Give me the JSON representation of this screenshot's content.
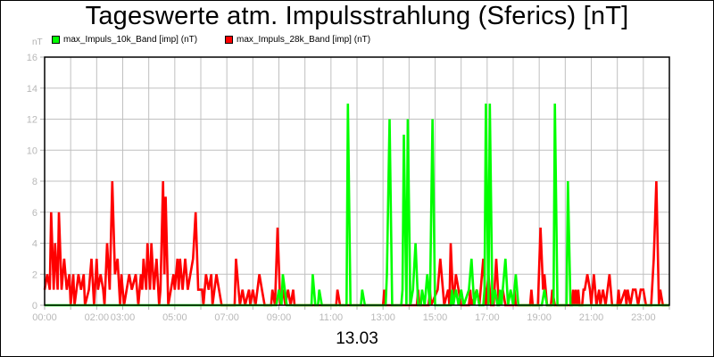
{
  "chart": {
    "title": "Tageswerte atm. Impulsstrahlung (Sferics) [nT]",
    "unit_label": "nT",
    "date_label": "13.03",
    "legend": [
      {
        "label": "max_Impuls_10k_Band [imp] (nT)",
        "color": "#00ff00"
      },
      {
        "label": "max_Impuls_28k_Band [imp] (nT)",
        "color": "#ff0000"
      }
    ]
  },
  "chart_data": {
    "type": "line",
    "title": "Tageswerte atm. Impulsstrahlung (Sferics) [nT]",
    "xlabel": "13.03",
    "ylabel": "nT",
    "ylim": [
      0,
      16
    ],
    "xlim": [
      0,
      24
    ],
    "grid": true,
    "legend_position": "top-left",
    "y_ticks": [
      "0",
      "2",
      "4",
      "6",
      "8",
      "10",
      "12",
      "14",
      "16"
    ],
    "x_tick_positions": [
      0,
      1,
      2,
      3,
      4,
      5,
      6,
      7,
      8,
      9,
      10,
      11,
      12,
      13,
      14,
      15,
      16,
      17,
      18,
      19,
      20,
      21,
      22,
      23,
      24
    ],
    "x_tick_labels": [
      {
        "pos": 0,
        "label": "00:00"
      },
      {
        "pos": 2,
        "label": "02:00"
      },
      {
        "pos": 3,
        "label": "03:00"
      },
      {
        "pos": 5,
        "label": "05:00"
      },
      {
        "pos": 7,
        "label": "07:00"
      },
      {
        "pos": 9,
        "label": "09:00"
      },
      {
        "pos": 11,
        "label": "11:00"
      },
      {
        "pos": 13,
        "label": "13:00"
      },
      {
        "pos": 15,
        "label": "15:00"
      },
      {
        "pos": 17,
        "label": "17:00"
      },
      {
        "pos": 19,
        "label": "19:00"
      },
      {
        "pos": 21,
        "label": "21:00"
      },
      {
        "pos": 23,
        "label": "23:00"
      }
    ],
    "series": [
      {
        "name": "max_Impuls_10k_Band [imp] (nT)",
        "color": "#00ff00",
        "points": [
          [
            0,
            0
          ],
          [
            8.9,
            0
          ],
          [
            9.0,
            1
          ],
          [
            9.1,
            0
          ],
          [
            9.15,
            2
          ],
          [
            9.3,
            0
          ],
          [
            10.25,
            0
          ],
          [
            10.3,
            2
          ],
          [
            10.4,
            0
          ],
          [
            10.5,
            0
          ],
          [
            10.55,
            1
          ],
          [
            10.65,
            0
          ],
          [
            11.6,
            0
          ],
          [
            11.65,
            13
          ],
          [
            11.75,
            0
          ],
          [
            12.15,
            0
          ],
          [
            12.2,
            1
          ],
          [
            12.3,
            0
          ],
          [
            13.1,
            0
          ],
          [
            13.15,
            2
          ],
          [
            13.25,
            12
          ],
          [
            13.35,
            0
          ],
          [
            13.7,
            0
          ],
          [
            13.75,
            1
          ],
          [
            13.8,
            11
          ],
          [
            13.9,
            0
          ],
          [
            13.95,
            12
          ],
          [
            14.05,
            0
          ],
          [
            14.15,
            1
          ],
          [
            14.25,
            4
          ],
          [
            14.35,
            0
          ],
          [
            14.45,
            0
          ],
          [
            14.5,
            1
          ],
          [
            14.6,
            0
          ],
          [
            14.7,
            2
          ],
          [
            14.8,
            0
          ],
          [
            14.9,
            12
          ],
          [
            15.0,
            0
          ],
          [
            15.6,
            0
          ],
          [
            15.65,
            1
          ],
          [
            15.7,
            0
          ],
          [
            15.8,
            1
          ],
          [
            15.9,
            0
          ],
          [
            16.0,
            1
          ],
          [
            16.1,
            0
          ],
          [
            16.3,
            1
          ],
          [
            16.4,
            3
          ],
          [
            16.5,
            0
          ],
          [
            16.6,
            1
          ],
          [
            16.7,
            0
          ],
          [
            16.85,
            0
          ],
          [
            16.9,
            1
          ],
          [
            16.95,
            13
          ],
          [
            17.05,
            0
          ],
          [
            17.1,
            13
          ],
          [
            17.2,
            0
          ],
          [
            17.3,
            1
          ],
          [
            17.4,
            0
          ],
          [
            17.45,
            0
          ],
          [
            17.5,
            1
          ],
          [
            17.55,
            0
          ],
          [
            17.6,
            1
          ],
          [
            17.7,
            3
          ],
          [
            17.8,
            0
          ],
          [
            17.9,
            1
          ],
          [
            18.0,
            0
          ],
          [
            18.1,
            2
          ],
          [
            18.2,
            0
          ],
          [
            19.1,
            0
          ],
          [
            19.2,
            1
          ],
          [
            19.3,
            0
          ],
          [
            19.55,
            0
          ],
          [
            19.6,
            13
          ],
          [
            19.7,
            0
          ],
          [
            20.05,
            0
          ],
          [
            20.1,
            8
          ],
          [
            20.2,
            0
          ],
          [
            24,
            0
          ]
        ]
      },
      {
        "name": "max_Impuls_28k_Band [imp] (nT)",
        "color": "#ff0000",
        "points": [
          [
            0,
            1
          ],
          [
            0.1,
            2
          ],
          [
            0.2,
            1
          ],
          [
            0.25,
            6
          ],
          [
            0.35,
            1
          ],
          [
            0.4,
            4
          ],
          [
            0.5,
            1
          ],
          [
            0.55,
            6
          ],
          [
            0.65,
            1
          ],
          [
            0.75,
            3
          ],
          [
            0.85,
            1
          ],
          [
            0.95,
            2
          ],
          [
            1.0,
            0
          ],
          [
            1.1,
            2
          ],
          [
            1.15,
            0
          ],
          [
            1.3,
            2
          ],
          [
            1.4,
            1
          ],
          [
            1.5,
            2
          ],
          [
            1.55,
            0
          ],
          [
            1.7,
            1
          ],
          [
            1.8,
            3
          ],
          [
            1.9,
            0
          ],
          [
            2.0,
            3
          ],
          [
            2.05,
            1
          ],
          [
            2.15,
            2
          ],
          [
            2.25,
            1
          ],
          [
            2.3,
            0
          ],
          [
            2.4,
            4
          ],
          [
            2.5,
            1
          ],
          [
            2.6,
            8
          ],
          [
            2.7,
            2
          ],
          [
            2.8,
            3
          ],
          [
            2.9,
            0
          ],
          [
            2.95,
            2
          ],
          [
            3.05,
            0
          ],
          [
            3.15,
            1
          ],
          [
            3.25,
            2
          ],
          [
            3.35,
            1
          ],
          [
            3.5,
            2
          ],
          [
            3.6,
            0
          ],
          [
            3.7,
            2
          ],
          [
            3.75,
            1
          ],
          [
            3.8,
            3
          ],
          [
            3.9,
            1
          ],
          [
            3.95,
            4
          ],
          [
            4.05,
            1
          ],
          [
            4.1,
            4
          ],
          [
            4.2,
            1
          ],
          [
            4.3,
            3
          ],
          [
            4.4,
            0
          ],
          [
            4.45,
            1
          ],
          [
            4.55,
            8
          ],
          [
            4.6,
            2
          ],
          [
            4.65,
            7
          ],
          [
            4.75,
            0
          ],
          [
            4.85,
            1
          ],
          [
            4.95,
            2
          ],
          [
            5.0,
            1
          ],
          [
            5.1,
            3
          ],
          [
            5.15,
            1
          ],
          [
            5.2,
            3
          ],
          [
            5.3,
            1
          ],
          [
            5.4,
            3
          ],
          [
            5.5,
            1
          ],
          [
            5.6,
            2
          ],
          [
            5.7,
            3
          ],
          [
            5.8,
            6
          ],
          [
            5.9,
            1
          ],
          [
            6.05,
            1
          ],
          [
            6.1,
            0
          ],
          [
            6.2,
            2
          ],
          [
            6.3,
            1
          ],
          [
            6.4,
            2
          ],
          [
            6.45,
            0
          ],
          [
            6.6,
            2
          ],
          [
            6.7,
            1
          ],
          [
            6.8,
            0
          ],
          [
            7.3,
            0
          ],
          [
            7.35,
            3
          ],
          [
            7.45,
            1
          ],
          [
            7.5,
            0
          ],
          [
            7.6,
            1
          ],
          [
            7.7,
            0
          ],
          [
            7.85,
            1
          ],
          [
            7.9,
            0
          ],
          [
            8.0,
            1
          ],
          [
            8.1,
            0
          ],
          [
            8.25,
            2
          ],
          [
            8.35,
            1
          ],
          [
            8.45,
            0
          ],
          [
            8.7,
            0
          ],
          [
            8.75,
            1
          ],
          [
            8.85,
            0
          ],
          [
            8.95,
            5
          ],
          [
            9.05,
            0
          ],
          [
            9.15,
            1
          ],
          [
            9.25,
            0
          ],
          [
            9.35,
            1
          ],
          [
            9.45,
            0
          ],
          [
            9.55,
            1
          ],
          [
            9.6,
            0
          ],
          [
            11.2,
            0
          ],
          [
            11.25,
            1
          ],
          [
            11.35,
            0
          ],
          [
            13.0,
            0
          ],
          [
            13.05,
            1
          ],
          [
            13.1,
            0
          ],
          [
            14.3,
            0
          ],
          [
            14.35,
            1
          ],
          [
            14.4,
            0
          ],
          [
            14.75,
            0
          ],
          [
            14.8,
            1
          ],
          [
            14.85,
            0
          ],
          [
            15.1,
            1
          ],
          [
            15.2,
            3
          ],
          [
            15.3,
            1
          ],
          [
            15.35,
            0
          ],
          [
            15.5,
            1
          ],
          [
            15.55,
            0
          ],
          [
            15.6,
            4
          ],
          [
            15.7,
            0
          ],
          [
            15.8,
            2
          ],
          [
            15.9,
            1
          ],
          [
            16.0,
            0
          ],
          [
            16.3,
            0
          ],
          [
            16.35,
            1
          ],
          [
            16.4,
            0
          ],
          [
            16.6,
            1
          ],
          [
            16.7,
            0
          ],
          [
            16.85,
            3
          ],
          [
            16.95,
            0
          ],
          [
            17.05,
            2
          ],
          [
            17.15,
            0
          ],
          [
            17.25,
            0
          ],
          [
            17.35,
            3
          ],
          [
            17.45,
            0
          ],
          [
            17.6,
            1
          ],
          [
            17.7,
            0
          ],
          [
            18.0,
            0
          ],
          [
            18.05,
            1
          ],
          [
            18.1,
            0
          ],
          [
            18.65,
            0
          ],
          [
            18.7,
            1
          ],
          [
            18.75,
            0
          ],
          [
            18.95,
            0
          ],
          [
            19.05,
            5
          ],
          [
            19.15,
            1
          ],
          [
            19.2,
            2
          ],
          [
            19.3,
            0
          ],
          [
            19.45,
            0
          ],
          [
            19.5,
            1
          ],
          [
            19.6,
            0
          ],
          [
            20.25,
            0
          ],
          [
            20.3,
            1
          ],
          [
            20.35,
            0
          ],
          [
            20.4,
            1
          ],
          [
            20.45,
            0
          ],
          [
            20.5,
            1
          ],
          [
            20.55,
            0
          ],
          [
            20.65,
            0
          ],
          [
            20.7,
            1
          ],
          [
            20.75,
            1
          ],
          [
            20.85,
            2
          ],
          [
            20.95,
            1
          ],
          [
            21.0,
            0
          ],
          [
            21.1,
            2
          ],
          [
            21.2,
            0
          ],
          [
            21.3,
            1
          ],
          [
            21.35,
            0
          ],
          [
            21.45,
            1
          ],
          [
            21.55,
            0
          ],
          [
            21.7,
            2
          ],
          [
            21.8,
            0
          ],
          [
            22.0,
            0
          ],
          [
            22.05,
            1
          ],
          [
            22.1,
            0
          ],
          [
            22.3,
            1
          ],
          [
            22.35,
            0
          ],
          [
            22.4,
            1
          ],
          [
            22.5,
            0
          ],
          [
            22.6,
            1
          ],
          [
            22.7,
            1
          ],
          [
            22.8,
            0
          ],
          [
            22.9,
            1
          ],
          [
            23.0,
            1
          ],
          [
            23.1,
            0
          ],
          [
            23.3,
            0
          ],
          [
            23.4,
            3
          ],
          [
            23.5,
            8
          ],
          [
            23.6,
            0
          ],
          [
            23.65,
            1
          ],
          [
            23.75,
            0
          ],
          [
            24,
            0
          ]
        ]
      }
    ]
  }
}
